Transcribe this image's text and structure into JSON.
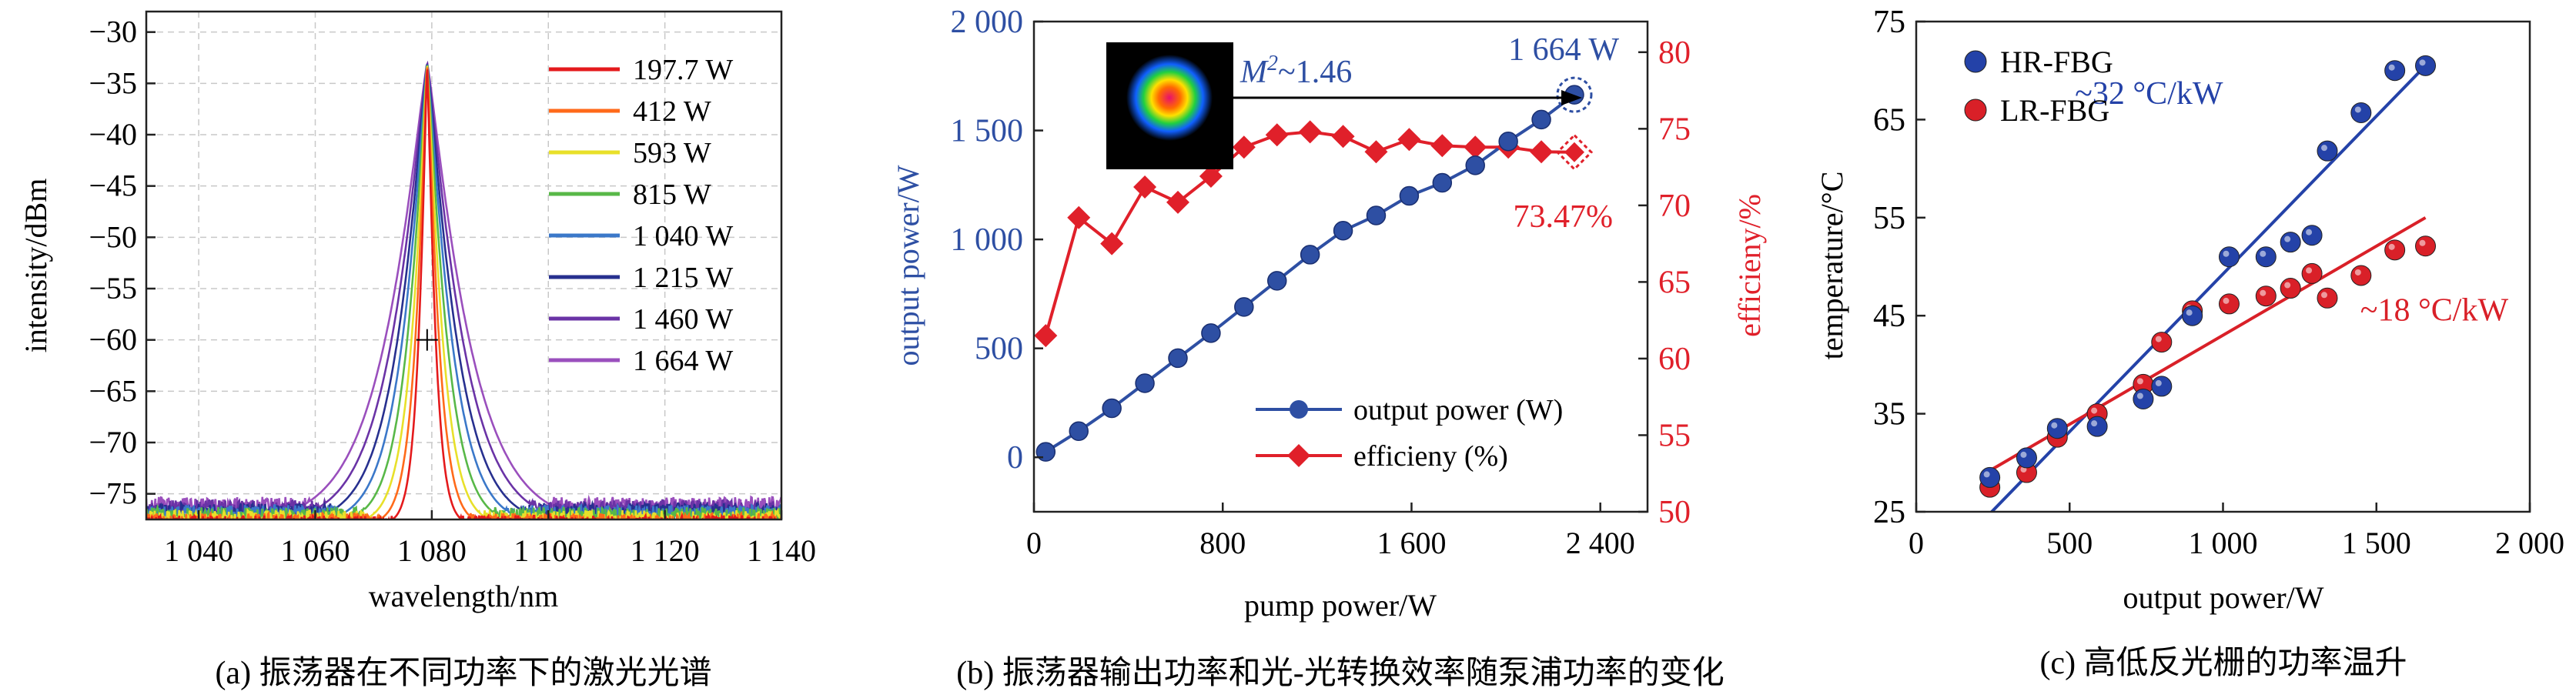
{
  "chart_data": [
    {
      "type": "line",
      "caption": "(a) 振荡器在不同功率下的激光光谱",
      "xlabel": "wavelength/nm",
      "ylabel": "intensity/dBm",
      "xlim": [
        1031,
        1140
      ],
      "ylim": [
        -77.5,
        -28
      ],
      "xticks": [
        1040,
        1060,
        1080,
        1100,
        1120,
        1140
      ],
      "xtick_labels": [
        "1 040",
        "1 060",
        "1 080",
        "1 100",
        "1 120",
        "1 140"
      ],
      "yticks": [
        -75,
        -70,
        -65,
        -60,
        -55,
        -50,
        -45,
        -40,
        -35,
        -30
      ],
      "ytick_labels": [
        "−75",
        "−70",
        "−65",
        "−60",
        "−55",
        "−50",
        "−45",
        "−40",
        "−35",
        "−30"
      ],
      "legend_position": "right",
      "peak_wavelength": 1079.2,
      "peak_dbm": -33,
      "series": [
        {
          "name": "197.7 W",
          "color": "#e41a1c",
          "half_width": 1.6,
          "noise_floor": -78.0
        },
        {
          "name": "412 W",
          "color": "#ff6a1a",
          "half_width": 2.2,
          "noise_floor": -77.8
        },
        {
          "name": "593 W",
          "color": "#e8e02a",
          "half_width": 2.9,
          "noise_floor": -77.5
        },
        {
          "name": "815 W",
          "color": "#58b848",
          "half_width": 3.7,
          "noise_floor": -77.2
        },
        {
          "name": "1 040 W",
          "color": "#3b78c9",
          "half_width": 4.6,
          "noise_floor": -77.0
        },
        {
          "name": "1 215 W",
          "color": "#27308f",
          "half_width": 5.5,
          "noise_floor": -76.8
        },
        {
          "name": "1 460 W",
          "color": "#6a33a6",
          "half_width": 6.6,
          "noise_floor": -76.5
        },
        {
          "name": "1 664 W",
          "color": "#9a4fbd",
          "half_width": 7.8,
          "noise_floor": -76.2
        }
      ]
    },
    {
      "type": "line",
      "caption": "(b) 振荡器输出功率和光-光转换效率随泵浦功率的变化",
      "xlabel": "pump power/W",
      "ylabel_left": "output power/W",
      "ylabel_right": "efficieny/%",
      "xlim": [
        0,
        2600
      ],
      "ylim_left": [
        -250,
        2000
      ],
      "ylim_right": [
        50,
        82
      ],
      "xticks": [
        0,
        800,
        1600,
        2400
      ],
      "xtick_labels": [
        "0",
        "800",
        "1 600",
        "2 400"
      ],
      "yticks_left": [
        0,
        500,
        1000,
        1500,
        2000
      ],
      "ytick_labels_left": [
        "0",
        "500",
        "1 000",
        "1 500",
        "2 000"
      ],
      "yticks_right": [
        50,
        55,
        60,
        65,
        70,
        75,
        80
      ],
      "x": [
        50,
        190,
        330,
        470,
        610,
        750,
        890,
        1030,
        1170,
        1310,
        1450,
        1590,
        1730,
        1870,
        2010,
        2150,
        2290
      ],
      "series": [
        {
          "name": "output power (W)",
          "axis": "left",
          "color": "#2e4fa3",
          "values": [
            25,
            120,
            225,
            340,
            455,
            570,
            690,
            810,
            930,
            1040,
            1110,
            1200,
            1260,
            1340,
            1450,
            1550,
            1664
          ]
        },
        {
          "name": "efficieny (%)",
          "axis": "right",
          "color": "#e0202a",
          "values": [
            61.5,
            69.2,
            67.5,
            71.2,
            70.2,
            71.9,
            73.8,
            74.6,
            74.8,
            74.5,
            73.5,
            74.3,
            73.9,
            73.8,
            73.8,
            73.5,
            73.47
          ]
        }
      ],
      "annotations": {
        "m2_text": "M²~1.46",
        "m2_prefix": "M",
        "m2_sup": "2",
        "m2_suffix": "~1.46",
        "max_power": "1 664 W",
        "efficiency": "73.47%"
      },
      "legend_position": "bottom-right"
    },
    {
      "type": "scatter",
      "caption": "(c) 高低反光栅的功率温升",
      "xlabel": "output power/W",
      "ylabel": "temperature/°C",
      "xlim": [
        0,
        2000
      ],
      "ylim": [
        25,
        75
      ],
      "xticks": [
        0,
        500,
        1000,
        1500,
        2000
      ],
      "xtick_labels": [
        "0",
        "500",
        "1 000",
        "1 500",
        "2 000"
      ],
      "yticks": [
        25,
        35,
        45,
        55,
        65,
        75
      ],
      "legend_position": "top-left",
      "series": [
        {
          "name": "HR-FBG",
          "color": "#2442a8",
          "x": [
            240,
            360,
            460,
            590,
            740,
            800,
            900,
            1020,
            1140,
            1220,
            1290,
            1340,
            1450,
            1560,
            1660
          ],
          "y": [
            28.5,
            30.5,
            33.5,
            33.7,
            36.5,
            37.8,
            45.0,
            51.0,
            51.0,
            52.5,
            53.2,
            61.8,
            65.7,
            70.0,
            70.5
          ],
          "fit": [
            [
              240,
              24.8
            ],
            [
              1660,
              70.5
            ]
          ],
          "fit_label": "~32 °C/kW"
        },
        {
          "name": "LR-FBG",
          "color": "#d92028",
          "x": [
            240,
            360,
            460,
            590,
            740,
            800,
            900,
            1020,
            1140,
            1220,
            1290,
            1340,
            1450,
            1560,
            1660
          ],
          "y": [
            27.5,
            29.0,
            32.6,
            35.0,
            38.0,
            42.3,
            45.5,
            46.2,
            47.0,
            47.8,
            49.3,
            46.8,
            49.1,
            51.7,
            52.1
          ],
          "fit": [
            [
              240,
              29.2
            ],
            [
              1660,
              55.0
            ]
          ],
          "fit_label": "~18 °C/kW"
        }
      ]
    }
  ]
}
